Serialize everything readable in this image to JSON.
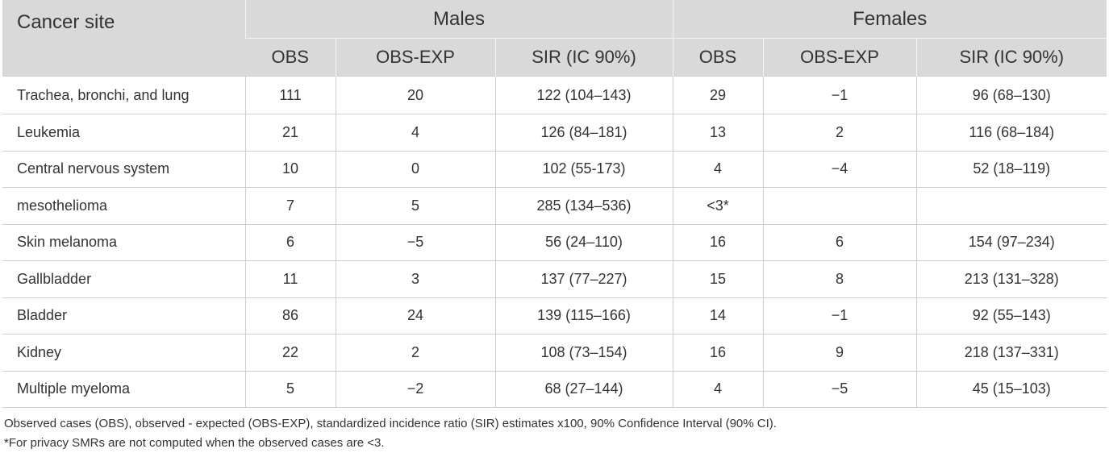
{
  "header": {
    "site_label": "Cancer site",
    "males_label": "Males",
    "females_label": "Females",
    "col_obs": "OBS",
    "col_obs_exp": "OBS-EXP",
    "col_sir": "SIR (IC 90%)"
  },
  "rows": [
    {
      "site": "Trachea, bronchi, and lung",
      "m_obs": "111",
      "m_diff": "20",
      "m_sir": "122 (104–143)",
      "f_obs": "29",
      "f_diff": "−1",
      "f_sir": "96 (68–130)"
    },
    {
      "site": "Leukemia",
      "m_obs": "21",
      "m_diff": "4",
      "m_sir": "126 (84–181)",
      "f_obs": "13",
      "f_diff": "2",
      "f_sir": "116 (68–184)"
    },
    {
      "site": "Central nervous system",
      "m_obs": "10",
      "m_diff": "0",
      "m_sir": "102 (55-173)",
      "f_obs": "4",
      "f_diff": "−4",
      "f_sir": "52 (18–119)"
    },
    {
      "site": "mesothelioma",
      "m_obs": "7",
      "m_diff": "5",
      "m_sir": "285 (134–536)",
      "f_obs": "<3*",
      "f_diff": "",
      "f_sir": ""
    },
    {
      "site": "Skin melanoma",
      "m_obs": "6",
      "m_diff": "−5",
      "m_sir": "56 (24–110)",
      "f_obs": "16",
      "f_diff": "6",
      "f_sir": "154 (97–234)"
    },
    {
      "site": "Gallbladder",
      "m_obs": "11",
      "m_diff": "3",
      "m_sir": "137 (77–227)",
      "f_obs": "15",
      "f_diff": "8",
      "f_sir": "213 (131–328)"
    },
    {
      "site": "Bladder",
      "m_obs": "86",
      "m_diff": "24",
      "m_sir": "139 (115–166)",
      "f_obs": "14",
      "f_diff": "−1",
      "f_sir": "92 (55–143)"
    },
    {
      "site": "Kidney",
      "m_obs": "22",
      "m_diff": "2",
      "m_sir": "108 (73–154)",
      "f_obs": "16",
      "f_diff": "9",
      "f_sir": "218 (137–331)"
    },
    {
      "site": "Multiple myeloma",
      "m_obs": "5",
      "m_diff": "−2",
      "m_sir": "68 (27–144)",
      "f_obs": "4",
      "f_diff": "−5",
      "f_sir": "45 (15–103)"
    }
  ],
  "footnotes": {
    "abbrev": "Observed cases (OBS), observed - expected (OBS-EXP), standardized incidence ratio (SIR) estimates x100, 90% Confidence Interval (90% CI).",
    "privacy": "*For privacy SMRs are not computed when the observed cases are <3."
  }
}
